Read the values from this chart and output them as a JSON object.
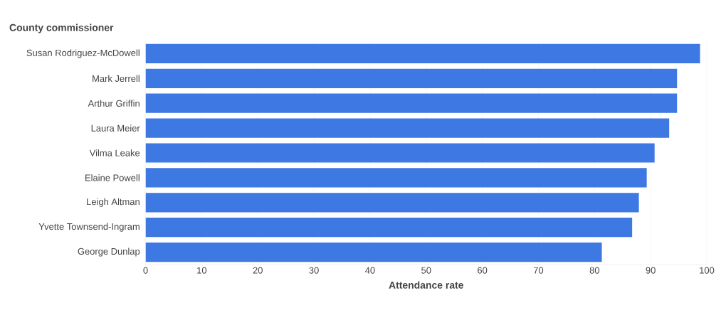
{
  "chart_data": {
    "type": "bar",
    "orientation": "horizontal",
    "ylabel": "County commissioner",
    "xlabel": "Attendance rate",
    "categories": [
      "Susan Rodriguez-McDowell",
      "Mark Jerrell",
      "Arthur Griffin",
      "Laura Meier",
      "Vilma Leake",
      "Elaine Powell",
      "Leigh Altman",
      "Yvette Townsend-Ingram",
      "George Dunlap"
    ],
    "values": [
      98.8,
      94.7,
      94.7,
      93.3,
      90.7,
      89.3,
      87.9,
      86.7,
      81.3
    ],
    "color": "#3d78e3",
    "xlim": [
      0,
      100
    ],
    "xticks": [
      0,
      10,
      20,
      30,
      40,
      50,
      60,
      70,
      80,
      90,
      100
    ],
    "grid": "x"
  }
}
